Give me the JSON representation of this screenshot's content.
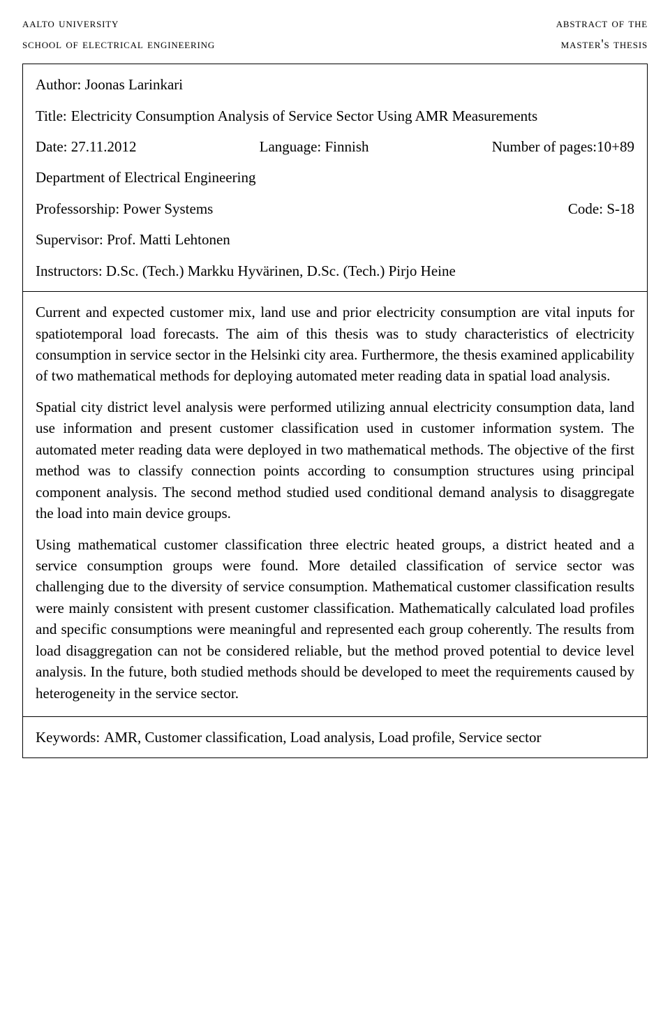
{
  "header": {
    "university": "aalto university",
    "school": "school of electrical engineering",
    "abstract_of": "abstract of the",
    "masters_thesis": "master's thesis"
  },
  "fields": {
    "author_label": "Author:",
    "author_value": "Joonas Larinkari",
    "title_label": "Title:",
    "title_value": "Electricity Consumption Analysis of Service Sector Using AMR Measurements",
    "date_label": "Date:",
    "date_value": "27.11.2012",
    "language_label": "Language:",
    "language_value": "Finnish",
    "pages_label": "Number of pages:",
    "pages_value": "10+89",
    "department_label": "Department of Electrical Engineering",
    "professorship_label": "Professorship:",
    "professorship_value": "Power Systems",
    "code_label": "Code:",
    "code_value": "S-18",
    "supervisor_label": "Supervisor:",
    "supervisor_value": "Prof. Matti Lehtonen",
    "instructors_label": "Instructors:",
    "instructors_value": "D.Sc. (Tech.) Markku Hyvärinen, D.Sc. (Tech.) Pirjo Heine"
  },
  "body": {
    "p1": "Current and expected customer mix, land use and prior electricity consumption are vital inputs for spatiotemporal load forecasts. The aim of this thesis was to study characteristics of electricity consumption in service sector in the Helsinki city area. Furthermore, the thesis examined applicability of two mathematical methods for deploying automated meter reading data in spatial load analysis.",
    "p2": "Spatial city district level analysis were performed utilizing annual electricity consumption data, land use information and present customer classification used in customer information system. The automated meter reading data were deployed in two mathematical methods. The objective of the first method was to classify connection points according to consumption structures using principal component analysis. The second method studied used conditional demand analysis to disaggregate the load into main device groups.",
    "p3": "Using mathematical customer classification three electric heated groups, a district heated and a service consumption groups were found. More detailed classification of service sector was challenging due to the diversity of service consumption. Mathematical customer classification results were mainly consistent with present customer classification. Mathematically calculated load profiles and specific consumptions were meaningful and represented each group coherently. The results from load disaggregation can not be considered reliable, but the method proved potential to device level analysis. In the future, both studied methods should be developed to meet the requirements caused by heterogeneity in the service sector."
  },
  "keywords": {
    "label": "Keywords:",
    "value": "AMR, Customer classification, Load analysis, Load profile, Service sector"
  }
}
